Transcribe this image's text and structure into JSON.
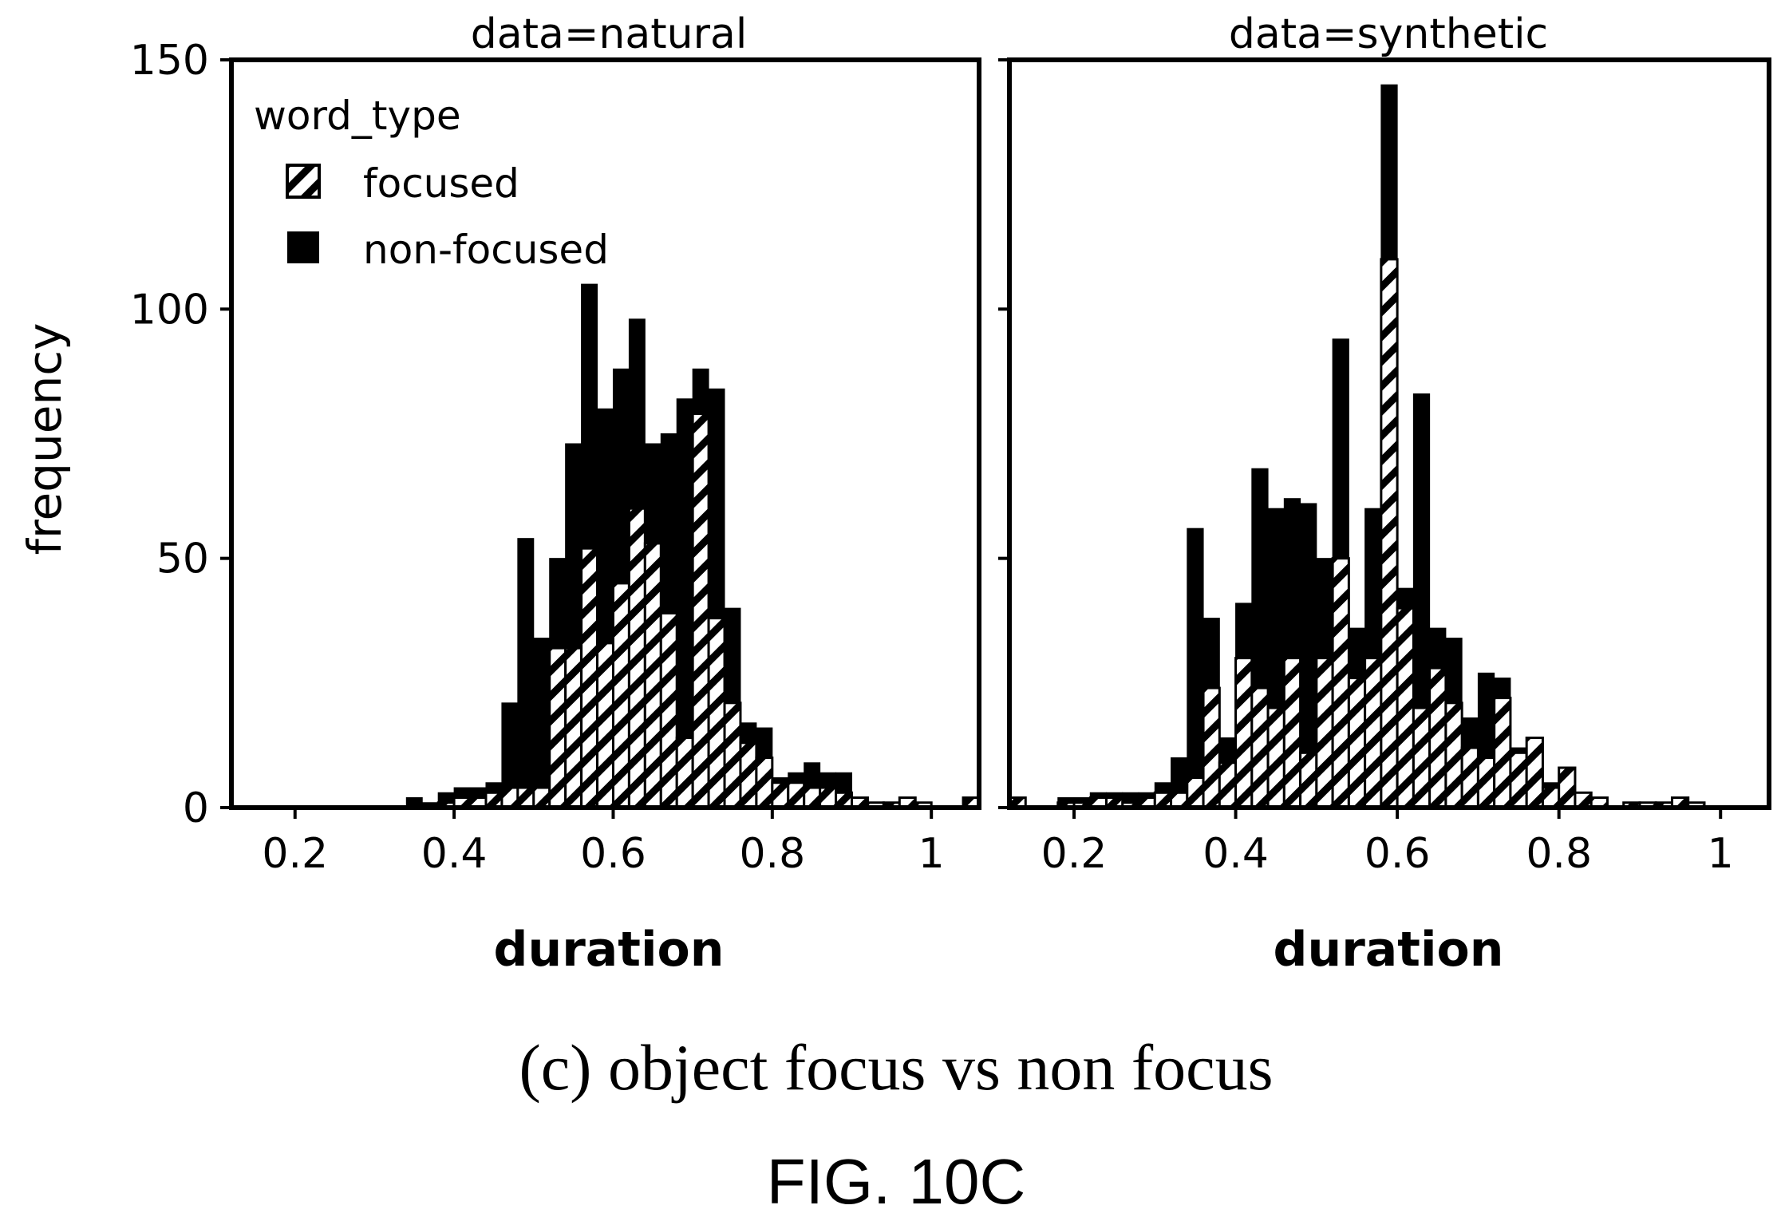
{
  "caption": "(c) object focus vs non focus",
  "figure_label": "FIG. 10C",
  "colors": {
    "focused_fill": "#ffffff",
    "hatch": "#000000",
    "nonfocused": "#000000",
    "frame": "#000000"
  },
  "chart_data": [
    {
      "type": "bar",
      "title": "data=natural",
      "xlabel": "duration",
      "ylabel": "frequency",
      "xlim": [
        0.12,
        1.06
      ],
      "ylim": [
        0,
        150
      ],
      "yticks": [
        "0",
        "50",
        "100",
        "150"
      ],
      "xticks": [
        "0.2",
        "0.4",
        "0.6",
        "0.8",
        "1"
      ],
      "xtick_values": [
        0.2,
        0.4,
        0.6,
        0.8,
        1.0
      ],
      "ytick_values": [
        0,
        50,
        100,
        150
      ],
      "stacked": true,
      "legend": {
        "title": "word_type",
        "position": "top-left",
        "entries": [
          "focused",
          "non-focused"
        ]
      },
      "bin_width": 0.02,
      "bin_starts": [
        0.34,
        0.36,
        0.38,
        0.4,
        0.42,
        0.44,
        0.46,
        0.48,
        0.5,
        0.52,
        0.54,
        0.56,
        0.58,
        0.6,
        0.62,
        0.64,
        0.66,
        0.68,
        0.7,
        0.72,
        0.74,
        0.76,
        0.78,
        0.8,
        0.82,
        0.84,
        0.86,
        0.88,
        0.9,
        0.92,
        0.94,
        0.96,
        0.98,
        1.04
      ],
      "series": [
        {
          "name": "focused",
          "values": [
            0,
            0,
            1,
            2,
            2,
            3,
            4,
            4,
            4,
            32,
            32,
            52,
            33,
            45,
            60,
            53,
            39,
            14,
            79,
            38,
            21,
            13,
            10,
            5,
            5,
            4,
            4,
            3,
            2,
            1,
            1,
            2,
            1,
            2
          ]
        },
        {
          "name": "non-focused",
          "values": [
            2,
            1,
            2,
            2,
            2,
            2,
            17,
            50,
            30,
            18,
            41,
            53,
            47,
            43,
            38,
            20,
            36,
            68,
            9,
            46,
            19,
            4,
            6,
            1,
            2,
            5,
            3,
            4,
            0,
            0,
            0,
            0,
            0,
            0
          ]
        }
      ]
    },
    {
      "type": "bar",
      "title": "data=synthetic",
      "xlabel": "duration",
      "xlim": [
        0.12,
        1.06
      ],
      "ylim": [
        0,
        150
      ],
      "xticks": [
        "0.2",
        "0.4",
        "0.6",
        "0.8",
        "1"
      ],
      "xtick_values": [
        0.2,
        0.4,
        0.6,
        0.8,
        1.0
      ],
      "ytick_values": [
        0,
        50,
        100,
        150
      ],
      "stacked": true,
      "bin_width": 0.02,
      "bin_starts": [
        0.12,
        0.18,
        0.2,
        0.22,
        0.24,
        0.26,
        0.28,
        0.3,
        0.32,
        0.34,
        0.36,
        0.38,
        0.4,
        0.42,
        0.44,
        0.46,
        0.48,
        0.5,
        0.52,
        0.54,
        0.56,
        0.58,
        0.6,
        0.62,
        0.64,
        0.66,
        0.68,
        0.7,
        0.72,
        0.74,
        0.76,
        0.78,
        0.8,
        0.82,
        0.84,
        0.88,
        0.9,
        0.92,
        0.94,
        0.96
      ],
      "series": [
        {
          "name": "focused",
          "values": [
            2,
            1,
            1,
            2,
            2,
            1,
            2,
            3,
            3,
            6,
            24,
            9,
            30,
            24,
            20,
            30,
            11,
            30,
            50,
            26,
            30,
            110,
            40,
            20,
            28,
            21,
            12,
            10,
            22,
            11,
            14,
            4,
            8,
            3,
            2,
            1,
            1,
            1,
            2,
            1
          ]
        },
        {
          "name": "non-focused",
          "values": [
            0,
            1,
            1,
            1,
            1,
            2,
            1,
            2,
            7,
            50,
            14,
            5,
            11,
            44,
            40,
            32,
            50,
            20,
            44,
            10,
            30,
            35,
            4,
            63,
            8,
            13,
            6,
            17,
            4,
            1,
            0,
            1,
            0,
            0,
            0,
            0,
            0,
            0,
            0,
            0
          ]
        }
      ]
    }
  ]
}
